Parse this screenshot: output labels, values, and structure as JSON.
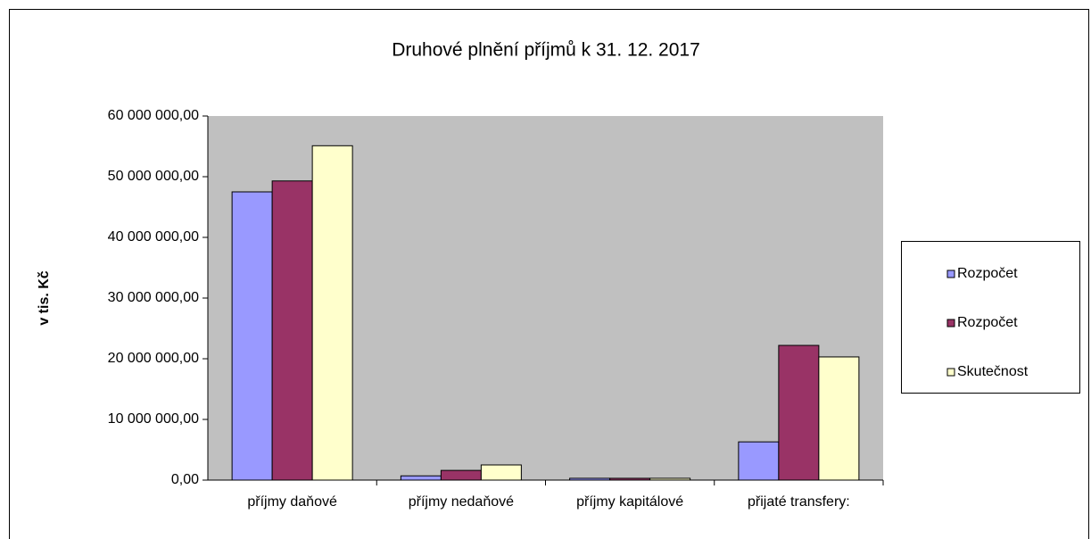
{
  "chart_data": {
    "type": "bar",
    "title": "Druhové plnění příjmů k 31. 12. 2017",
    "y_label": "v tis. Kč",
    "categories": [
      "příjmy daňové",
      "příjmy nedaňové",
      "příjmy kapitálové",
      "přijaté transfery:"
    ],
    "series": [
      {
        "name": "Rozpočet",
        "color": "#9999ff",
        "values": [
          47500000,
          700000,
          300000,
          6300000
        ]
      },
      {
        "name": "Rozpočet",
        "color": "#993366",
        "values": [
          49300000,
          1600000,
          300000,
          22200000
        ]
      },
      {
        "name": "Skutečnost",
        "color": "#ffffcc",
        "values": [
          55100000,
          2500000,
          300000,
          20300000
        ]
      }
    ],
    "ylim": [
      0,
      60000000
    ],
    "yticks": [
      {
        "value": 0,
        "label": "0,00"
      },
      {
        "value": 10000000,
        "label": "10 000 000,00"
      },
      {
        "value": 20000000,
        "label": "20 000 000,00"
      },
      {
        "value": 30000000,
        "label": "30 000 000,00"
      },
      {
        "value": 40000000,
        "label": "40 000 000,00"
      },
      {
        "value": 50000000,
        "label": "50 000 000,00"
      },
      {
        "value": 60000000,
        "label": "60 000 000,00"
      }
    ],
    "legend": "right"
  }
}
